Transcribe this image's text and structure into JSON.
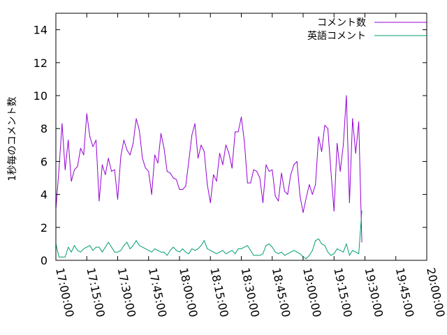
{
  "chart_data": {
    "type": "line",
    "title": "",
    "xlabel": "",
    "ylabel": "1秒毎のコメント数",
    "xlim": [
      "17:00:00",
      "20:00:00"
    ],
    "ylim": [
      0,
      15
    ],
    "grid": false,
    "legend_position": "top-right",
    "xticks": [
      "17:00:00",
      "17:15:00",
      "17:30:00",
      "17:45:00",
      "18:00:00",
      "18:15:00",
      "18:30:00",
      "18:45:00",
      "19:00:00",
      "19:15:00",
      "19:30:00",
      "19:45:00",
      "20:00:00"
    ],
    "yticks": [
      0,
      2,
      4,
      6,
      8,
      10,
      12,
      14
    ],
    "series": [
      {
        "name": "コメント数",
        "color": "#9400d3",
        "points": [
          [
            "17:00:00",
            3.1
          ],
          [
            "17:01:30",
            5.5
          ],
          [
            "17:03:00",
            8.3
          ],
          [
            "17:04:30",
            5.5
          ],
          [
            "17:06:00",
            7.3
          ],
          [
            "17:07:30",
            4.8
          ],
          [
            "17:09:00",
            5.5
          ],
          [
            "17:10:30",
            5.7
          ],
          [
            "17:12:00",
            6.8
          ],
          [
            "17:13:30",
            6.4
          ],
          [
            "17:15:00",
            8.9
          ],
          [
            "17:16:30",
            7.5
          ],
          [
            "17:18:00",
            6.9
          ],
          [
            "17:19:30",
            7.3
          ],
          [
            "17:21:00",
            3.6
          ],
          [
            "17:22:30",
            5.8
          ],
          [
            "17:24:00",
            5.2
          ],
          [
            "17:25:30",
            6.2
          ],
          [
            "17:27:00",
            5.4
          ],
          [
            "17:28:30",
            5.5
          ],
          [
            "17:30:00",
            3.7
          ],
          [
            "17:31:30",
            6.3
          ],
          [
            "17:33:00",
            7.3
          ],
          [
            "17:34:30",
            6.7
          ],
          [
            "17:36:00",
            6.4
          ],
          [
            "17:37:30",
            7.1
          ],
          [
            "17:39:00",
            8.6
          ],
          [
            "17:40:30",
            7.9
          ],
          [
            "17:42:00",
            6.2
          ],
          [
            "17:43:30",
            5.6
          ],
          [
            "17:45:00",
            5.4
          ],
          [
            "17:46:30",
            4.0
          ],
          [
            "17:48:00",
            6.4
          ],
          [
            "17:49:30",
            5.9
          ],
          [
            "17:51:00",
            7.7
          ],
          [
            "17:52:30",
            6.8
          ],
          [
            "17:54:00",
            5.4
          ],
          [
            "17:55:30",
            5.3
          ],
          [
            "17:57:00",
            5.0
          ],
          [
            "17:58:30",
            4.9
          ],
          [
            "18:00:00",
            4.3
          ],
          [
            "18:01:30",
            4.3
          ],
          [
            "18:03:00",
            4.5
          ],
          [
            "18:04:30",
            6.0
          ],
          [
            "18:06:00",
            7.6
          ],
          [
            "18:07:30",
            8.3
          ],
          [
            "18:09:00",
            6.2
          ],
          [
            "18:10:30",
            7.0
          ],
          [
            "18:12:00",
            6.6
          ],
          [
            "18:13:30",
            4.6
          ],
          [
            "18:15:00",
            3.5
          ],
          [
            "18:16:30",
            5.2
          ],
          [
            "18:18:00",
            4.8
          ],
          [
            "18:19:30",
            6.5
          ],
          [
            "18:21:00",
            5.8
          ],
          [
            "18:22:30",
            7.0
          ],
          [
            "18:24:00",
            6.5
          ],
          [
            "18:25:30",
            5.6
          ],
          [
            "18:27:00",
            7.8
          ],
          [
            "18:28:30",
            7.8
          ],
          [
            "18:30:00",
            8.7
          ],
          [
            "18:31:30",
            7.2
          ],
          [
            "18:33:00",
            4.7
          ],
          [
            "18:34:30",
            4.7
          ],
          [
            "18:36:00",
            5.5
          ],
          [
            "18:37:30",
            5.4
          ],
          [
            "18:39:00",
            5.0
          ],
          [
            "18:40:30",
            3.5
          ],
          [
            "18:42:00",
            5.8
          ],
          [
            "18:43:30",
            5.4
          ],
          [
            "18:45:00",
            5.5
          ],
          [
            "18:46:30",
            3.9
          ],
          [
            "18:48:00",
            3.6
          ],
          [
            "18:49:30",
            5.3
          ],
          [
            "18:51:00",
            4.2
          ],
          [
            "18:52:30",
            4.0
          ],
          [
            "18:54:00",
            5.2
          ],
          [
            "18:55:30",
            5.8
          ],
          [
            "18:57:00",
            6.0
          ],
          [
            "18:58:30",
            3.9
          ],
          [
            "19:00:00",
            2.9
          ],
          [
            "19:01:30",
            3.8
          ],
          [
            "19:03:00",
            4.6
          ],
          [
            "19:04:30",
            4.0
          ],
          [
            "19:06:00",
            4.6
          ],
          [
            "19:07:30",
            7.5
          ],
          [
            "19:09:00",
            6.6
          ],
          [
            "19:10:30",
            8.2
          ],
          [
            "19:12:00",
            8.0
          ],
          [
            "19:13:30",
            5.4
          ],
          [
            "19:15:00",
            3.0
          ],
          [
            "19:16:30",
            7.1
          ],
          [
            "19:18:00",
            5.4
          ],
          [
            "19:19:30",
            7.0
          ],
          [
            "19:21:00",
            10.0
          ],
          [
            "19:22:30",
            3.5
          ],
          [
            "19:24:00",
            8.6
          ],
          [
            "19:25:30",
            6.5
          ],
          [
            "19:27:00",
            8.4
          ],
          [
            "19:28:30",
            1.1
          ]
        ]
      },
      {
        "name": "英語コメント",
        "color": "#009e73",
        "points": [
          [
            "17:00:00",
            1.0
          ],
          [
            "17:01:30",
            0.2
          ],
          [
            "17:03:00",
            0.2
          ],
          [
            "17:04:30",
            0.2
          ],
          [
            "17:06:00",
            0.8
          ],
          [
            "17:07:30",
            0.5
          ],
          [
            "17:09:00",
            0.9
          ],
          [
            "17:10:30",
            0.6
          ],
          [
            "17:12:00",
            0.5
          ],
          [
            "17:13:30",
            0.7
          ],
          [
            "17:15:00",
            0.8
          ],
          [
            "17:16:30",
            0.9
          ],
          [
            "17:18:00",
            0.6
          ],
          [
            "17:19:30",
            0.8
          ],
          [
            "17:21:00",
            0.8
          ],
          [
            "17:22:30",
            0.5
          ],
          [
            "17:24:00",
            0.8
          ],
          [
            "17:25:30",
            1.1
          ],
          [
            "17:27:00",
            0.8
          ],
          [
            "17:28:30",
            0.5
          ],
          [
            "17:30:00",
            0.5
          ],
          [
            "17:31:30",
            0.6
          ],
          [
            "17:33:00",
            0.9
          ],
          [
            "17:34:30",
            1.1
          ],
          [
            "17:36:00",
            0.7
          ],
          [
            "17:37:30",
            0.9
          ],
          [
            "17:39:00",
            1.2
          ],
          [
            "17:40:30",
            0.9
          ],
          [
            "17:42:00",
            0.8
          ],
          [
            "17:43:30",
            0.7
          ],
          [
            "17:45:00",
            0.6
          ],
          [
            "17:46:30",
            0.5
          ],
          [
            "17:48:00",
            0.7
          ],
          [
            "17:49:30",
            0.6
          ],
          [
            "17:51:00",
            0.5
          ],
          [
            "17:52:30",
            0.5
          ],
          [
            "17:54:00",
            0.3
          ],
          [
            "17:55:30",
            0.6
          ],
          [
            "17:57:00",
            0.8
          ],
          [
            "17:58:30",
            0.6
          ],
          [
            "18:00:00",
            0.5
          ],
          [
            "18:01:30",
            0.7
          ],
          [
            "18:03:00",
            0.5
          ],
          [
            "18:04:30",
            0.4
          ],
          [
            "18:06:00",
            0.7
          ],
          [
            "18:07:30",
            0.6
          ],
          [
            "18:09:00",
            0.7
          ],
          [
            "18:10:30",
            0.9
          ],
          [
            "18:12:00",
            1.2
          ],
          [
            "18:13:30",
            0.7
          ],
          [
            "18:15:00",
            0.6
          ],
          [
            "18:16:30",
            0.5
          ],
          [
            "18:18:00",
            0.4
          ],
          [
            "18:19:30",
            0.5
          ],
          [
            "18:21:00",
            0.6
          ],
          [
            "18:22:30",
            0.4
          ],
          [
            "18:24:00",
            0.5
          ],
          [
            "18:25:30",
            0.6
          ],
          [
            "18:27:00",
            0.4
          ],
          [
            "18:28:30",
            0.7
          ],
          [
            "18:30:00",
            0.7
          ],
          [
            "18:31:30",
            0.8
          ],
          [
            "18:33:00",
            0.9
          ],
          [
            "18:34:30",
            0.6
          ],
          [
            "18:36:00",
            0.3
          ],
          [
            "18:37:30",
            0.3
          ],
          [
            "18:39:00",
            0.3
          ],
          [
            "18:40:30",
            0.4
          ],
          [
            "18:42:00",
            0.9
          ],
          [
            "18:43:30",
            1.0
          ],
          [
            "18:45:00",
            0.8
          ],
          [
            "18:46:30",
            0.5
          ],
          [
            "18:48:00",
            0.4
          ],
          [
            "18:49:30",
            0.5
          ],
          [
            "18:51:00",
            0.3
          ],
          [
            "18:52:30",
            0.4
          ],
          [
            "18:54:00",
            0.5
          ],
          [
            "18:55:30",
            0.6
          ],
          [
            "18:57:00",
            0.5
          ],
          [
            "18:58:30",
            0.4
          ],
          [
            "19:00:00",
            0.2
          ],
          [
            "19:01:30",
            0.1
          ],
          [
            "19:03:00",
            0.3
          ],
          [
            "19:04:30",
            0.6
          ],
          [
            "19:06:00",
            1.2
          ],
          [
            "19:07:30",
            1.3
          ],
          [
            "19:09:00",
            1.0
          ],
          [
            "19:10:30",
            0.9
          ],
          [
            "19:12:00",
            0.5
          ],
          [
            "19:13:30",
            0.3
          ],
          [
            "19:15:00",
            0.4
          ],
          [
            "19:16:30",
            0.7
          ],
          [
            "19:18:00",
            0.6
          ],
          [
            "19:19:30",
            0.5
          ],
          [
            "19:21:00",
            1.0
          ],
          [
            "19:22:30",
            0.3
          ],
          [
            "19:24:00",
            0.6
          ],
          [
            "19:25:30",
            0.5
          ],
          [
            "19:27:00",
            0.4
          ],
          [
            "19:28:30",
            3.0
          ]
        ]
      }
    ]
  }
}
